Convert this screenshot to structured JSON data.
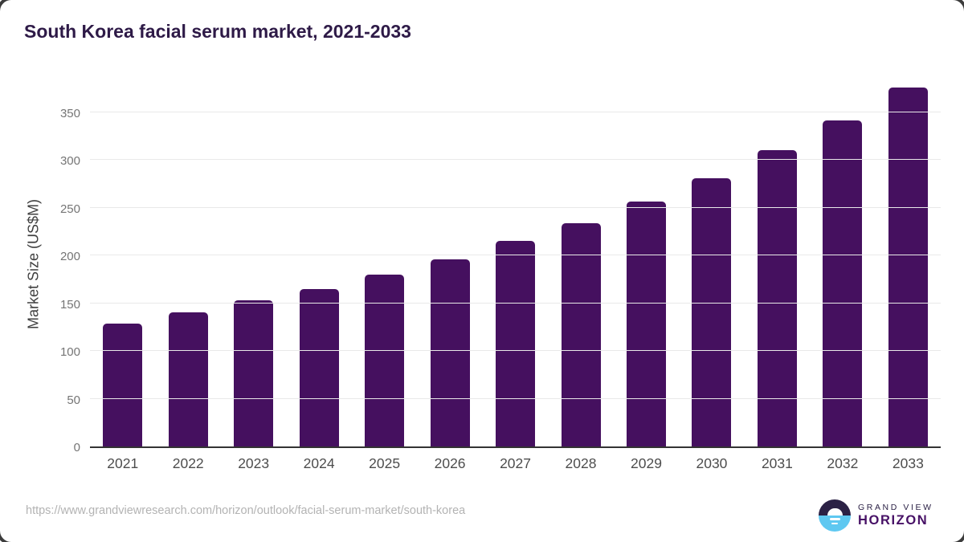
{
  "title": "South Korea facial serum market, 2021-2033",
  "chart_data": {
    "type": "bar",
    "title": "South Korea facial serum market, 2021-2033",
    "categories": [
      "2021",
      "2022",
      "2023",
      "2024",
      "2025",
      "2026",
      "2027",
      "2028",
      "2029",
      "2030",
      "2031",
      "2032",
      "2033"
    ],
    "values": [
      129,
      140,
      153,
      165,
      180,
      196,
      215,
      234,
      256,
      281,
      310,
      341,
      376
    ],
    "xlabel": "",
    "ylabel": "Market Size (US$M)",
    "ylim": [
      0,
      385
    ],
    "yticks": [
      0,
      50,
      100,
      150,
      200,
      250,
      300,
      350
    ],
    "grid": true,
    "legend": "none",
    "bar_color": "#45105f"
  },
  "colors": {
    "bar": "#45105f",
    "title_text": "#2e1a47",
    "gridline": "#e9e9e9",
    "axis_line": "#333333",
    "tick_text": "#757575",
    "x_label_text": "#4d4d4d",
    "url_text": "#b3b3b3",
    "logo_navy": "#2b2145",
    "logo_purple": "#471166",
    "logo_blue": "#5ec8f1"
  },
  "footer": {
    "source_url": "https://www.grandviewresearch.com/horizon/outlook/facial-serum-market/south-korea",
    "logo": {
      "brand_top": "GRAND VIEW",
      "brand_bottom": "HORIZON"
    }
  }
}
